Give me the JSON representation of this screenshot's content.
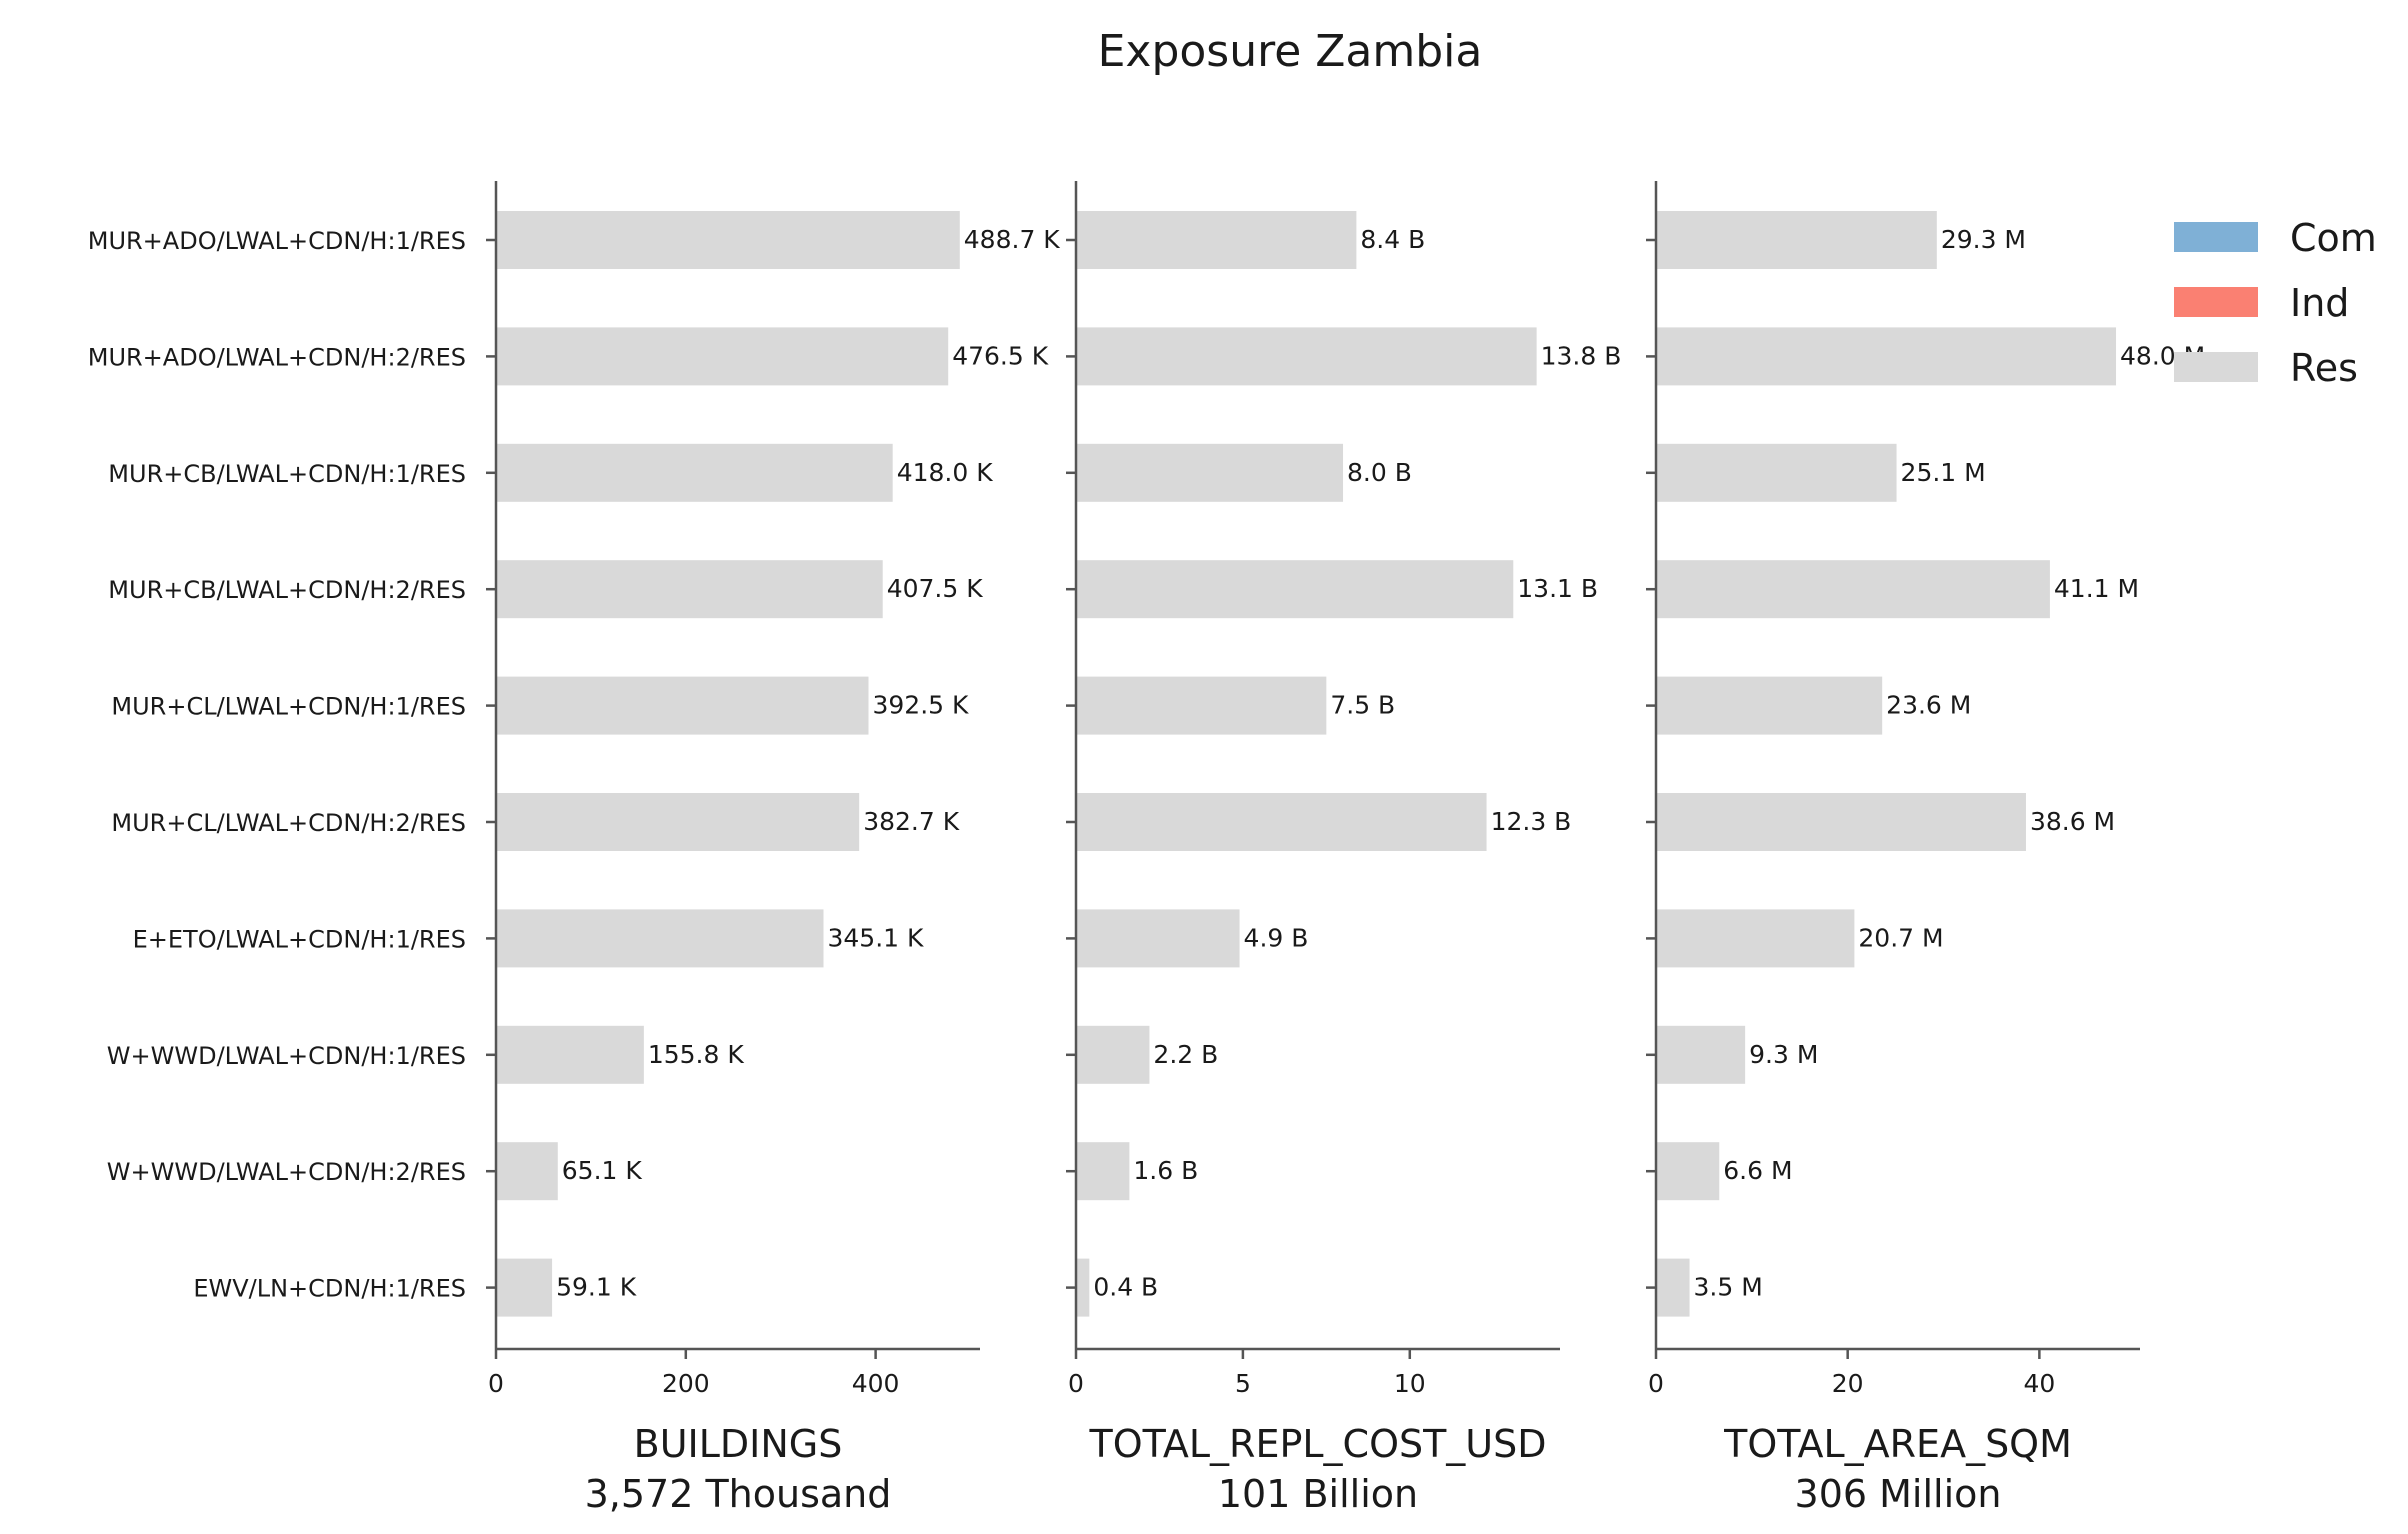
{
  "chart_data": {
    "type": "bar",
    "orientation": "horizontal",
    "stacked": true,
    "title": "Exposure Zambia",
    "legend": {
      "placement": "top-right",
      "entries": [
        {
          "name": "Com",
          "color": "#7fb0d6"
        },
        {
          "name": "Ind",
          "color": "#fa8072"
        },
        {
          "name": "Res",
          "color": "#d9d9d9"
        }
      ]
    },
    "categories": [
      "MUR+ADO/LWAL+CDN/H:1/RES",
      "MUR+ADO/LWAL+CDN/H:2/RES",
      "MUR+CB/LWAL+CDN/H:1/RES",
      "MUR+CB/LWAL+CDN/H:2/RES",
      "MUR+CL/LWAL+CDN/H:1/RES",
      "MUR+CL/LWAL+CDN/H:2/RES",
      "E+ETO/LWAL+CDN/H:1/RES",
      "W+WWD/LWAL+CDN/H:1/RES",
      "W+WWD/LWAL+CDN/H:2/RES",
      "EWV/LN+CDN/H:1/RES"
    ],
    "panels": [
      {
        "xlabel": "BUILDINGS",
        "subtitle": "3,572 Thousand",
        "xlim": [
          0,
          510
        ],
        "xticks": [
          0,
          200,
          400
        ],
        "xtick_labels": [
          "0",
          "200",
          "400"
        ],
        "series": [
          {
            "name": "Res",
            "values": [
              488.7,
              476.5,
              418.0,
              407.5,
              392.5,
              382.7,
              345.1,
              155.8,
              65.1,
              59.1
            ]
          }
        ],
        "value_labels": [
          "488.7 K",
          "476.5 K",
          "418.0 K",
          "407.5 K",
          "392.5 K",
          "382.7 K",
          "345.1 K",
          "155.8 K",
          "65.1 K",
          "59.1 K"
        ]
      },
      {
        "xlabel": "TOTAL_REPL_COST_USD",
        "subtitle": "101 Billion",
        "xlim": [
          0,
          14.5
        ],
        "xticks": [
          0,
          5,
          10
        ],
        "xtick_labels": [
          "0",
          "5",
          "10"
        ],
        "series": [
          {
            "name": "Res",
            "values": [
              8.4,
              13.8,
              8.0,
              13.1,
              7.5,
              12.3,
              4.9,
              2.2,
              1.6,
              0.4
            ]
          }
        ],
        "value_labels": [
          "8.4 B",
          "13.8 B",
          "8.0 B",
          "13.1 B",
          "7.5 B",
          "12.3 B",
          "4.9 B",
          "2.2 B",
          "1.6 B",
          "0.4 B"
        ]
      },
      {
        "xlabel": "TOTAL_AREA_SQM",
        "subtitle": "306 Million",
        "xlim": [
          0,
          50.5
        ],
        "xticks": [
          0,
          20,
          40
        ],
        "xtick_labels": [
          "0",
          "20",
          "40"
        ],
        "series": [
          {
            "name": "Res",
            "values": [
              29.3,
              48.0,
              25.1,
              41.1,
              23.6,
              38.6,
              20.7,
              9.3,
              6.6,
              3.5
            ]
          }
        ],
        "value_labels": [
          "29.3 M",
          "48.0 M",
          "25.1 M",
          "41.1 M",
          "23.6 M",
          "38.6 M",
          "20.7 M",
          "9.3 M",
          "6.6 M",
          "3.5 M"
        ]
      }
    ]
  }
}
